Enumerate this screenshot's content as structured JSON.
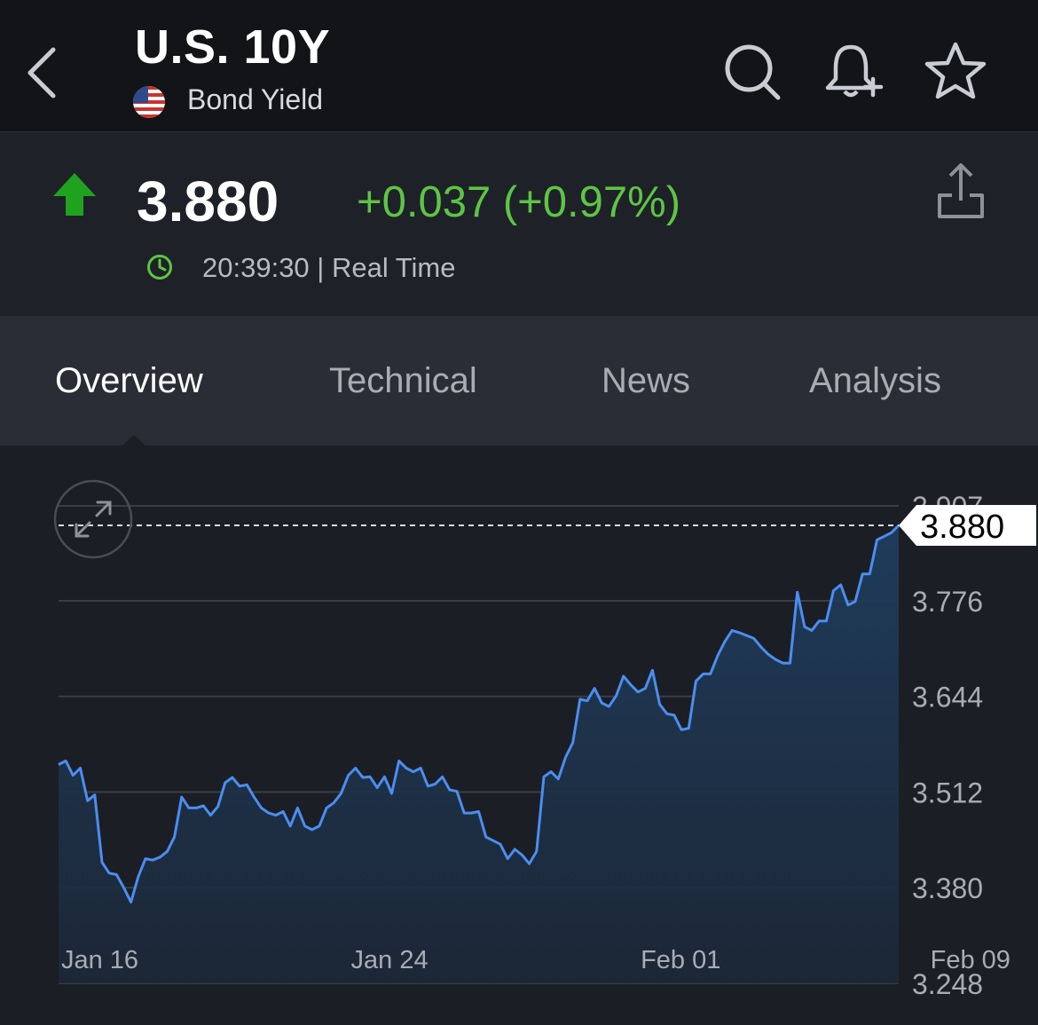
{
  "header": {
    "title": "U.S. 10Y",
    "subtitle": "Bond Yield",
    "icons": [
      "back-chevron-icon",
      "search-icon",
      "bell-plus-icon",
      "star-icon"
    ]
  },
  "quote": {
    "price": "3.880",
    "change": "+0.037 (+0.97%)",
    "time": "20:39:30 | Real Time",
    "up_color": "#1fa31f",
    "change_color": "#5dc544"
  },
  "tabs": [
    {
      "label": "Overview",
      "active": true
    },
    {
      "label": "Technical",
      "active": false
    },
    {
      "label": "News",
      "active": false
    },
    {
      "label": "Analysis",
      "active": false
    }
  ],
  "chart_data": {
    "type": "area",
    "title": "",
    "xlabel": "",
    "ylabel": "",
    "line_color": "#4a8ef0",
    "current_value": "3.880",
    "y_ticks": [
      "3.907",
      "3.776",
      "3.644",
      "3.512",
      "3.380",
      "3.248"
    ],
    "ylim": [
      3.248,
      3.907
    ],
    "x_ticks": [
      "Jan 16",
      "Jan 24",
      "Feb 01",
      "Feb 09"
    ],
    "x_tick_index": [
      6,
      46,
      86,
      126
    ],
    "values": [
      3.55,
      3.555,
      3.535,
      3.545,
      3.5,
      3.508,
      3.415,
      3.4,
      3.398,
      3.38,
      3.36,
      3.395,
      3.42,
      3.418,
      3.422,
      3.43,
      3.45,
      3.505,
      3.49,
      3.49,
      3.493,
      3.48,
      3.492,
      3.525,
      3.532,
      3.52,
      3.522,
      3.505,
      3.49,
      3.483,
      3.48,
      3.485,
      3.465,
      3.49,
      3.465,
      3.46,
      3.465,
      3.49,
      3.497,
      3.51,
      3.535,
      3.545,
      3.532,
      3.533,
      3.518,
      3.533,
      3.51,
      3.555,
      3.545,
      3.54,
      3.545,
      3.52,
      3.523,
      3.533,
      3.515,
      3.513,
      3.483,
      3.483,
      3.485,
      3.45,
      3.445,
      3.44,
      3.42,
      3.433,
      3.425,
      3.413,
      3.43,
      3.533,
      3.54,
      3.53,
      3.56,
      3.58,
      3.64,
      3.638,
      3.655,
      3.635,
      3.63,
      3.645,
      3.672,
      3.66,
      3.65,
      3.655,
      3.68,
      3.633,
      3.62,
      3.618,
      3.598,
      3.6,
      3.665,
      3.675,
      3.675,
      3.7,
      3.72,
      3.735,
      3.732,
      3.728,
      3.724,
      3.712,
      3.702,
      3.695,
      3.69,
      3.69,
      3.788,
      3.74,
      3.735,
      3.748,
      3.748,
      3.79,
      3.798,
      3.77,
      3.775,
      3.813,
      3.813,
      3.86,
      3.865,
      3.87,
      3.88
    ]
  }
}
